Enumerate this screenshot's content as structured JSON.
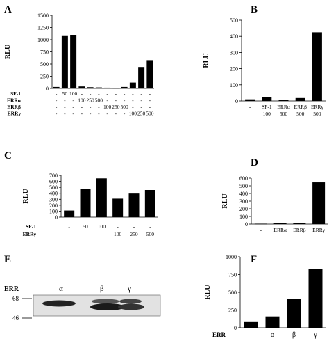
{
  "chart_data": [
    {
      "id": "A",
      "type": "bar",
      "panel_label": "A",
      "ylabel": "RLU",
      "ylim": [
        0,
        1500
      ],
      "yticks": [
        "0",
        "250",
        "500",
        "750",
        "1000",
        "1250",
        "1500"
      ],
      "values": [
        30,
        1075,
        1090,
        40,
        25,
        20,
        15,
        10,
        30,
        120,
        440,
        580
      ],
      "rows": [
        {
          "label": "SF-1",
          "cells": [
            "-",
            "50",
            "100",
            "-",
            "-",
            "-",
            "-",
            "-",
            "-",
            "-",
            "-",
            "-"
          ]
        },
        {
          "label": "ERRα",
          "cells": [
            "-",
            "-",
            "-",
            "100",
            "250",
            "500",
            "-",
            "-",
            "-",
            "-",
            "-",
            "-"
          ]
        },
        {
          "label": "ERRβ",
          "cells": [
            "-",
            "-",
            "-",
            "-",
            "-",
            "-",
            "100",
            "250",
            "500",
            "-",
            "-",
            "-"
          ]
        },
        {
          "label": "ERRγ",
          "cells": [
            "-",
            "-",
            "-",
            "-",
            "-",
            "-",
            "-",
            "-",
            "-",
            "100",
            "250",
            "500"
          ]
        }
      ]
    },
    {
      "id": "B",
      "type": "bar",
      "panel_label": "B",
      "ylabel": "RLU",
      "ylim": [
        0,
        500
      ],
      "yticks": [
        "0",
        "100",
        "200",
        "300",
        "400",
        "500"
      ],
      "values": [
        10,
        25,
        5,
        18,
        425
      ],
      "categories": [
        {
          "top": "-",
          "bottom": ""
        },
        {
          "top": "SF-1",
          "bottom": "100"
        },
        {
          "top": "ERRα",
          "bottom": "500"
        },
        {
          "top": "ERRβ",
          "bottom": "500"
        },
        {
          "top": "ERRγ",
          "bottom": "500"
        }
      ]
    },
    {
      "id": "C",
      "type": "bar",
      "panel_label": "C",
      "ylabel": "RLU",
      "ylim": [
        0,
        700
      ],
      "yticks": [
        "0",
        "100",
        "200",
        "300",
        "400",
        "500",
        "600",
        "700"
      ],
      "values": [
        110,
        475,
        650,
        310,
        395,
        455
      ],
      "rows": [
        {
          "label": "SF-1",
          "cells": [
            "-",
            "50",
            "100",
            "-",
            "-",
            "-"
          ]
        },
        {
          "label": "ERRγ",
          "cells": [
            "-",
            "-",
            "-",
            "100",
            "250",
            "500"
          ]
        }
      ]
    },
    {
      "id": "D",
      "type": "bar",
      "panel_label": "D",
      "ylabel": "RLU",
      "ylim": [
        0,
        600
      ],
      "yticks": [
        "0",
        "100",
        "200",
        "300",
        "400",
        "500",
        "600"
      ],
      "values": [
        5,
        18,
        15,
        545
      ],
      "categories": [
        "-",
        "ERRα",
        "ERRβ",
        "ERRγ"
      ]
    },
    {
      "id": "F",
      "type": "bar",
      "panel_label": "F",
      "ylabel": "RLU",
      "ylim": [
        0,
        1000
      ],
      "yticks": [
        "0",
        "250",
        "500",
        "750",
        "1000"
      ],
      "values": [
        90,
        160,
        410,
        825
      ],
      "row_label": "ERR",
      "categories": [
        "-",
        "α",
        "β",
        "γ"
      ]
    }
  ],
  "blot": {
    "panel_label": "E",
    "row_label": "ERR",
    "lanes": [
      "α",
      "β",
      "γ"
    ],
    "markers": [
      "68",
      "46"
    ]
  }
}
